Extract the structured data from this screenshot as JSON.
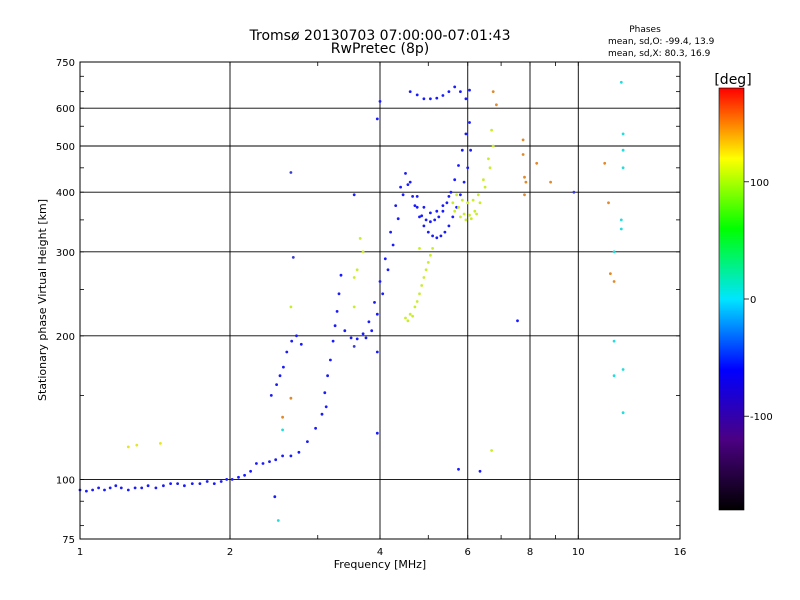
{
  "chart_data": {
    "type": "scatter",
    "title": "Tromsø 20130703 07:00:00-07:01:43",
    "subtitle": "RwPretec (8p)",
    "xlabel": "Frequency [MHz]",
    "ylabel": "Stationary phase Virtual Height [km]",
    "xscale": "log",
    "yscale": "log",
    "xlim": [
      1,
      16
    ],
    "ylim": [
      75,
      750
    ],
    "xticks": [
      1,
      2,
      4,
      6,
      8,
      10,
      16
    ],
    "yticks": [
      75,
      100,
      200,
      300,
      400,
      500,
      600,
      750
    ],
    "grid": true,
    "phase_stats": {
      "heading": "Phases",
      "line_o": "mean, sd,O: -99.4, 13.9",
      "line_x": "mean, sd,X:  80.3, 16.9"
    },
    "colorbar": {
      "label": "[deg]",
      "range": [
        -180,
        180
      ],
      "ticks": [
        100,
        0,
        -100
      ],
      "stops": [
        "#000000",
        "#4b0082",
        "#0000ff",
        "#00e5ff",
        "#00ff00",
        "#ffff00",
        "#ff0000"
      ]
    },
    "series": [
      {
        "name": "",
        "phase": -100,
        "color": "#1a1aff",
        "points": [
          [
            1.0,
            95
          ],
          [
            1.03,
            94.5
          ],
          [
            1.06,
            95
          ],
          [
            1.09,
            96
          ],
          [
            1.12,
            95
          ],
          [
            1.15,
            96
          ],
          [
            1.18,
            97
          ],
          [
            1.21,
            96
          ],
          [
            1.25,
            95
          ],
          [
            1.29,
            96
          ],
          [
            1.33,
            96
          ],
          [
            1.37,
            97
          ],
          [
            1.42,
            96
          ],
          [
            1.47,
            97
          ],
          [
            1.52,
            98
          ],
          [
            1.57,
            98
          ],
          [
            1.62,
            97
          ],
          [
            1.68,
            98
          ],
          [
            1.74,
            98
          ],
          [
            1.8,
            99
          ],
          [
            1.86,
            98
          ],
          [
            1.92,
            99
          ],
          [
            1.97,
            100
          ],
          [
            2.02,
            100
          ],
          [
            2.08,
            101
          ],
          [
            2.14,
            102
          ],
          [
            2.2,
            104
          ],
          [
            2.26,
            108
          ],
          [
            2.33,
            108
          ],
          [
            2.4,
            109
          ],
          [
            2.47,
            110
          ],
          [
            2.55,
            112
          ],
          [
            2.65,
            112
          ],
          [
            2.75,
            114
          ],
          [
            2.86,
            120
          ],
          [
            2.97,
            128
          ],
          [
            3.06,
            137
          ],
          [
            3.12,
            142
          ],
          [
            2.42,
            150
          ],
          [
            2.48,
            158
          ],
          [
            2.52,
            165
          ],
          [
            2.56,
            172
          ],
          [
            2.6,
            185
          ],
          [
            2.66,
            195
          ],
          [
            2.72,
            200
          ],
          [
            2.78,
            192
          ],
          [
            2.46,
            92
          ],
          [
            3.1,
            152
          ],
          [
            3.14,
            165
          ],
          [
            3.18,
            178
          ],
          [
            3.22,
            195
          ],
          [
            3.25,
            210
          ],
          [
            3.28,
            225
          ],
          [
            3.31,
            245
          ],
          [
            3.34,
            268
          ],
          [
            3.4,
            205
          ],
          [
            3.5,
            198
          ],
          [
            3.6,
            197
          ],
          [
            3.7,
            202
          ],
          [
            3.8,
            214
          ],
          [
            3.9,
            235
          ],
          [
            4.0,
            260
          ],
          [
            4.1,
            290
          ],
          [
            4.2,
            330
          ],
          [
            4.3,
            375
          ],
          [
            4.4,
            410
          ],
          [
            4.5,
            438
          ],
          [
            3.75,
            198
          ],
          [
            3.85,
            205
          ],
          [
            3.95,
            222
          ],
          [
            4.05,
            245
          ],
          [
            4.15,
            275
          ],
          [
            4.25,
            310
          ],
          [
            4.35,
            352
          ],
          [
            4.45,
            395
          ],
          [
            4.55,
            415
          ],
          [
            4.65,
            392
          ],
          [
            4.75,
            372
          ],
          [
            4.85,
            357
          ],
          [
            4.95,
            350
          ],
          [
            5.05,
            347
          ],
          [
            5.15,
            350
          ],
          [
            5.25,
            355
          ],
          [
            5.35,
            365
          ],
          [
            5.45,
            380
          ],
          [
            5.55,
            400
          ],
          [
            5.65,
            425
          ],
          [
            5.75,
            455
          ],
          [
            5.85,
            490
          ],
          [
            5.95,
            530
          ],
          [
            6.05,
            560
          ],
          [
            4.7,
            375
          ],
          [
            4.8,
            355
          ],
          [
            4.9,
            340
          ],
          [
            5.0,
            330
          ],
          [
            5.1,
            324
          ],
          [
            5.2,
            321
          ],
          [
            5.3,
            324
          ],
          [
            5.4,
            330
          ],
          [
            5.5,
            340
          ],
          [
            5.6,
            355
          ],
          [
            5.7,
            372
          ],
          [
            5.8,
            395
          ],
          [
            5.9,
            420
          ],
          [
            6.0,
            450
          ],
          [
            6.08,
            490
          ],
          [
            4.6,
            420
          ],
          [
            4.75,
            392
          ],
          [
            4.9,
            372
          ],
          [
            5.05,
            362
          ],
          [
            5.2,
            365
          ],
          [
            5.35,
            375
          ],
          [
            5.5,
            392
          ],
          [
            4.6,
            650
          ],
          [
            4.75,
            640
          ],
          [
            4.9,
            628
          ],
          [
            5.05,
            628
          ],
          [
            5.2,
            630
          ],
          [
            5.35,
            638
          ],
          [
            5.5,
            650
          ],
          [
            5.65,
            665
          ],
          [
            5.8,
            650
          ],
          [
            5.95,
            628
          ],
          [
            6.05,
            655
          ],
          [
            3.95,
            570
          ],
          [
            3.55,
            395
          ],
          [
            4.0,
            620
          ],
          [
            3.95,
            185
          ],
          [
            3.95,
            125
          ],
          [
            5.75,
            105
          ],
          [
            6.35,
            104
          ],
          [
            7.55,
            215
          ]
        ]
      },
      {
        "name": "",
        "phase": 110,
        "color": "#c8ee2a",
        "points": [
          [
            4.5,
            218
          ],
          [
            4.6,
            222
          ],
          [
            4.7,
            230
          ],
          [
            4.8,
            245
          ],
          [
            4.9,
            265
          ],
          [
            5.0,
            285
          ],
          [
            5.1,
            305
          ],
          [
            4.55,
            215
          ],
          [
            4.65,
            220
          ],
          [
            4.75,
            236
          ],
          [
            4.85,
            255
          ],
          [
            4.95,
            275
          ],
          [
            5.05,
            295
          ],
          [
            5.6,
            380
          ],
          [
            5.75,
            372
          ],
          [
            5.9,
            360
          ],
          [
            6.05,
            358
          ],
          [
            6.2,
            365
          ],
          [
            6.35,
            380
          ],
          [
            6.5,
            410
          ],
          [
            6.65,
            450
          ],
          [
            6.75,
            500
          ],
          [
            5.7,
            395
          ],
          [
            5.85,
            385
          ],
          [
            6.0,
            380
          ],
          [
            6.15,
            385
          ],
          [
            6.3,
            395
          ],
          [
            6.45,
            425
          ],
          [
            6.6,
            470
          ],
          [
            6.7,
            540
          ],
          [
            5.65,
            365
          ],
          [
            5.8,
            355
          ],
          [
            5.95,
            350
          ],
          [
            6.1,
            352
          ],
          [
            6.25,
            360
          ],
          [
            6.7,
            115
          ],
          [
            3.55,
            230
          ],
          [
            3.55,
            265
          ],
          [
            3.6,
            275
          ],
          [
            3.65,
            320
          ],
          [
            3.7,
            300
          ],
          [
            4.8,
            305
          ],
          [
            2.65,
            230
          ]
        ]
      },
      {
        "name": "",
        "phase": 100,
        "color": "#e5e52a",
        "points": [
          [
            1.25,
            117
          ],
          [
            1.3,
            118
          ],
          [
            1.45,
            119
          ]
        ]
      },
      {
        "name": "",
        "phase": 0,
        "color": "#22dddd",
        "points": [
          [
            12.2,
            680
          ],
          [
            12.3,
            530
          ],
          [
            12.3,
            490
          ],
          [
            12.3,
            450
          ],
          [
            12.2,
            350
          ],
          [
            12.2,
            335
          ],
          [
            12.3,
            170
          ],
          [
            12.3,
            138
          ],
          [
            11.8,
            300
          ],
          [
            11.8,
            195
          ],
          [
            11.8,
            165
          ],
          [
            2.5,
            82
          ],
          [
            2.55,
            127
          ]
        ]
      },
      {
        "name": "",
        "phase": 160,
        "color": "#e08a2a",
        "points": [
          [
            7.75,
            515
          ],
          [
            7.75,
            480
          ],
          [
            7.8,
            430
          ],
          [
            7.85,
            420
          ],
          [
            7.8,
            395
          ],
          [
            8.25,
            460
          ],
          [
            8.8,
            420
          ],
          [
            11.3,
            460
          ],
          [
            11.5,
            380
          ],
          [
            11.6,
            270
          ],
          [
            11.8,
            260
          ],
          [
            6.75,
            650
          ],
          [
            6.85,
            610
          ],
          [
            2.55,
            135
          ],
          [
            2.65,
            148
          ]
        ]
      },
      {
        "name": "",
        "phase": -100,
        "color": "#3a3ad8",
        "points": [
          [
            2.65,
            440
          ],
          [
            2.68,
            292
          ],
          [
            3.55,
            190
          ],
          [
            9.8,
            400
          ]
        ]
      }
    ]
  }
}
